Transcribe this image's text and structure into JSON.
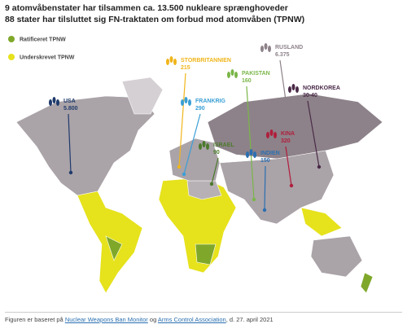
{
  "header": {
    "title": "9 atomvåbenstater har tilsammen ca. 13.500 nukleare sprænghoveder",
    "subtitle": "88 stater har tilsluttet sig FN-traktaten om forbud mod atomvåben (TPNW)"
  },
  "legend": [
    {
      "label": "Ratificeret TPNW",
      "color": "#7fa82a"
    },
    {
      "label": "Underskrevet TPNW",
      "color": "#e6e21c"
    }
  ],
  "states": [
    {
      "name": "USA",
      "count": "5.800",
      "color": "#1f3a6b"
    },
    {
      "name": "STORBRITANNIEN",
      "count": "215",
      "color": "#f0b51a"
    },
    {
      "name": "FRANKRIG",
      "count": "290",
      "color": "#3a9fd6"
    },
    {
      "name": "RUSLAND",
      "count": "6.375",
      "color": "#8d8289"
    },
    {
      "name": "PAKISTAN",
      "count": "160",
      "color": "#7ab648"
    },
    {
      "name": "ISRAEL",
      "count": "90",
      "color": "#4c7a2c"
    },
    {
      "name": "INDIEN",
      "count": "150",
      "color": "#2b6fb0"
    },
    {
      "name": "KINA",
      "count": "320",
      "color": "#b01e3c"
    },
    {
      "name": "NORDKOREA",
      "count": "30-40",
      "color": "#4a2a48"
    }
  ],
  "footer": {
    "prefix": "Figuren er baseret på",
    "links": [
      "Nuclear Weapons Ban Monitor",
      "Arms Control Association"
    ],
    "middle": "og",
    "suffix": ", d. 27. april 2021"
  }
}
